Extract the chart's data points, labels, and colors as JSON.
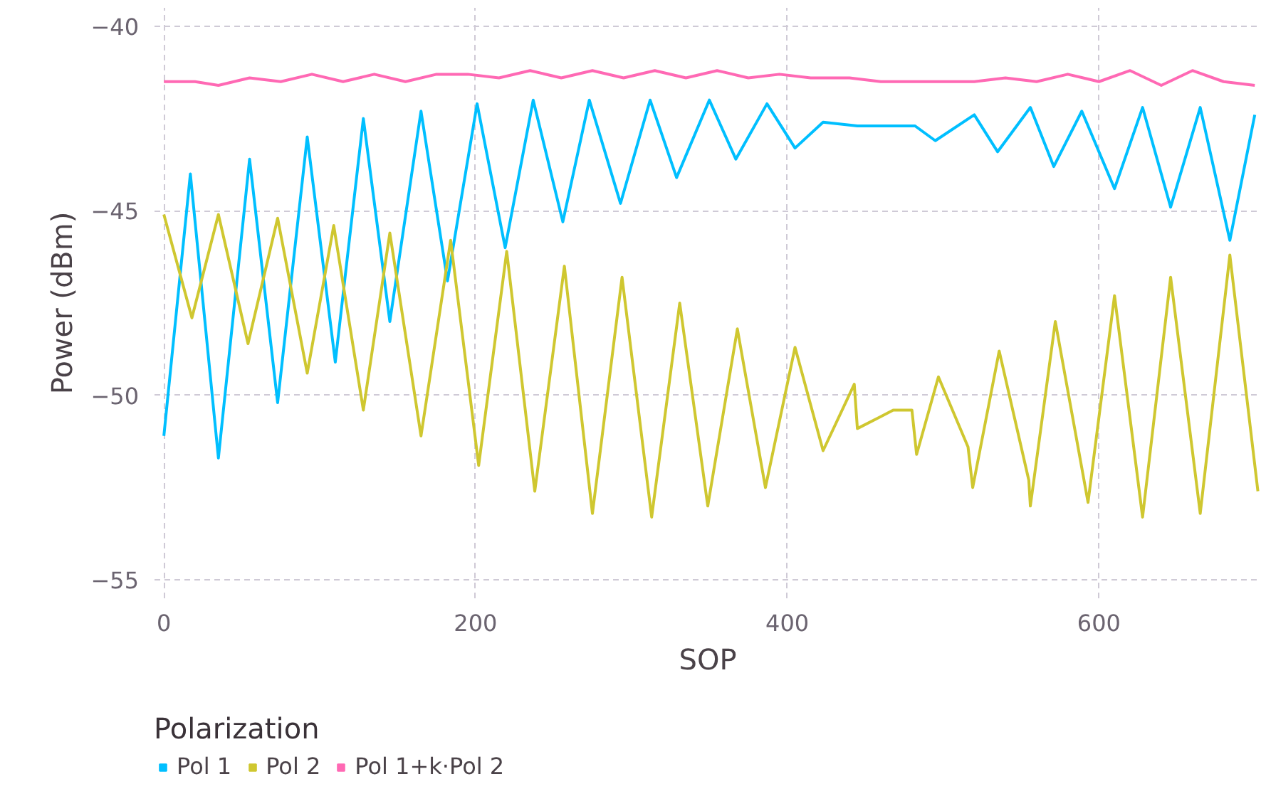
{
  "chart_data": {
    "type": "line",
    "xlabel": "SOP",
    "ylabel": "Power (dBm)",
    "legend_title": "Polarization",
    "legend": "bottom",
    "grid": true,
    "line_style": "solid",
    "xlim": [
      -6,
      704
    ],
    "ylim": [
      -55.5,
      -39.5
    ],
    "xticks": [
      0,
      200,
      400,
      600
    ],
    "yticks": [
      -55,
      -50,
      -45,
      -40
    ],
    "series": [
      {
        "name": "Pol 1",
        "color": "#00bfff",
        "x": [
          0,
          17,
          35,
          55,
          73,
          92,
          110,
          128,
          145,
          165,
          182,
          201,
          219,
          237,
          256,
          273,
          293,
          312,
          329,
          350,
          367,
          387,
          405,
          423,
          445,
          468,
          482,
          495,
          520,
          535,
          556,
          571,
          589,
          610,
          628,
          646,
          665,
          684,
          700
        ],
        "values": [
          -51.1,
          -44.0,
          -51.7,
          -43.6,
          -50.2,
          -43.0,
          -49.1,
          -42.5,
          -48.0,
          -42.3,
          -46.9,
          -42.1,
          -46.0,
          -42.0,
          -45.3,
          -42.0,
          -44.8,
          -42.0,
          -44.1,
          -42.0,
          -43.6,
          -42.1,
          -43.3,
          -42.6,
          -42.7,
          -42.7,
          -42.7,
          -43.1,
          -42.4,
          -43.4,
          -42.2,
          -43.8,
          -42.3,
          -44.4,
          -42.2,
          -44.9,
          -42.2,
          -45.8,
          -42.4
        ]
      },
      {
        "name": "Pol 2",
        "color": "#cfc730",
        "x": [
          0,
          18,
          35,
          54,
          73,
          92,
          109,
          128,
          145,
          165,
          184,
          202,
          220,
          238,
          257,
          275,
          294,
          313,
          331,
          349,
          368,
          386,
          405,
          423,
          443,
          445,
          459,
          468,
          480,
          483,
          497,
          516,
          519,
          536,
          555,
          556,
          572,
          593,
          610,
          628,
          646,
          665,
          684,
          702
        ],
        "values": [
          -45.1,
          -47.9,
          -45.1,
          -48.6,
          -45.2,
          -49.4,
          -45.4,
          -50.4,
          -45.6,
          -51.1,
          -45.8,
          -51.9,
          -46.1,
          -52.6,
          -46.5,
          -53.2,
          -46.8,
          -53.3,
          -47.5,
          -53.0,
          -48.2,
          -52.5,
          -48.7,
          -51.5,
          -49.7,
          -50.9,
          -50.6,
          -50.4,
          -50.4,
          -51.6,
          -49.5,
          -51.4,
          -52.5,
          -48.8,
          -52.3,
          -53.0,
          -48.0,
          -52.9,
          -47.3,
          -53.3,
          -46.8,
          -53.2,
          -46.2,
          -52.6
        ]
      },
      {
        "name": "Pol 1+k·Pol 2",
        "color": "#ff69b4",
        "x": [
          0,
          20,
          35,
          55,
          75,
          95,
          115,
          135,
          155,
          175,
          195,
          215,
          235,
          255,
          275,
          295,
          315,
          335,
          355,
          375,
          395,
          415,
          440,
          460,
          480,
          500,
          520,
          540,
          560,
          580,
          600,
          620,
          640,
          660,
          680,
          700
        ],
        "values": [
          -41.5,
          -41.5,
          -41.6,
          -41.4,
          -41.5,
          -41.3,
          -41.5,
          -41.3,
          -41.5,
          -41.3,
          -41.3,
          -41.4,
          -41.2,
          -41.4,
          -41.2,
          -41.4,
          -41.2,
          -41.4,
          -41.2,
          -41.4,
          -41.3,
          -41.4,
          -41.4,
          -41.5,
          -41.5,
          -41.5,
          -41.5,
          -41.4,
          -41.5,
          -41.3,
          -41.5,
          -41.2,
          -41.6,
          -41.2,
          -41.5,
          -41.6
        ]
      }
    ]
  }
}
